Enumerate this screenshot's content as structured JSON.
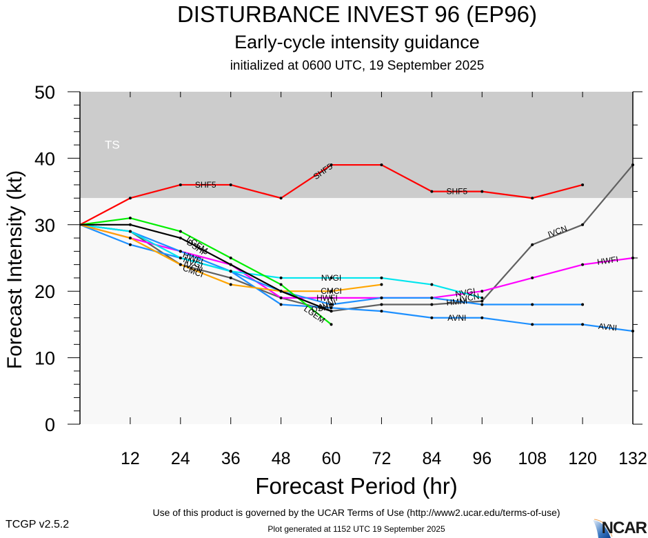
{
  "header": {
    "title": "DISTURBANCE INVEST 96 (EP96)",
    "subtitle": "Early-cycle intensity guidance",
    "initialized": "initialized at 0600 UTC, 19 September 2025"
  },
  "footer": {
    "terms": "Use of this product is governed by the UCAR Terms of Use (http://www2.ucar.edu/terms-of-use)",
    "version": "TCGP v2.5.2",
    "generated": "Plot generated at 1152 UTC   19 September 2025",
    "logo": "NCAR"
  },
  "chart_data": {
    "type": "line",
    "title": "DISTURBANCE INVEST 96 (EP96)",
    "xlabel": "Forecast Period (hr)",
    "ylabel": "Forecast Intensity (kt)",
    "xlim": [
      0,
      132
    ],
    "ylim": [
      0,
      50
    ],
    "xticks": [
      12,
      24,
      36,
      48,
      60,
      72,
      84,
      96,
      108,
      120,
      132
    ],
    "yticks": [
      0,
      10,
      20,
      30,
      40,
      50
    ],
    "grid": false,
    "bands": [
      {
        "label": "TS",
        "from": 34,
        "to": 50,
        "color": "#cccccc"
      },
      {
        "label": "",
        "from": 0,
        "to": 34,
        "color": "#f8f8f8"
      }
    ],
    "series": [
      {
        "name": "SHF5",
        "color": "#ff0000",
        "x": [
          0,
          12,
          24,
          36,
          48,
          60,
          72,
          84,
          96,
          108,
          120
        ],
        "values": [
          30,
          34,
          36,
          36,
          34,
          39,
          39,
          35,
          35,
          34,
          36
        ]
      },
      {
        "name": "IVCN",
        "color": "#606060",
        "x": [
          0,
          12,
          24,
          36,
          48,
          60,
          72,
          84,
          96,
          108,
          120,
          132
        ],
        "values": [
          30,
          29,
          24,
          22,
          19,
          17,
          18,
          18,
          18.5,
          27,
          30,
          39
        ]
      },
      {
        "name": "HWFI",
        "color": "#ff00ff",
        "x": [
          0,
          12,
          24,
          36,
          48,
          60,
          72,
          84,
          96,
          108,
          120,
          132
        ],
        "values": [
          30,
          28,
          26,
          24,
          19,
          19,
          19,
          19,
          20,
          22,
          24,
          25
        ]
      },
      {
        "name": "HMNI",
        "color": "#1e90ff",
        "x": [
          0,
          12,
          24,
          36,
          48,
          60,
          72,
          84,
          96,
          108,
          120
        ],
        "values": [
          30,
          29,
          26,
          23,
          20,
          18,
          19,
          19,
          18,
          18,
          18
        ]
      },
      {
        "name": "AVNI",
        "color": "#1e90ff",
        "x": [
          0,
          12,
          24,
          36,
          48,
          60,
          72,
          84,
          96,
          108,
          120,
          132
        ],
        "values": [
          30,
          27,
          25,
          23,
          18,
          17.5,
          17,
          16,
          16,
          15,
          15,
          14
        ]
      },
      {
        "name": "NVGI",
        "color": "#00e5ee",
        "x": [
          0,
          12,
          24,
          36,
          48,
          60,
          72,
          84,
          96
        ],
        "values": [
          30,
          29,
          25,
          23,
          22,
          22,
          22,
          21,
          19
        ]
      },
      {
        "name": "CMCI",
        "color": "#ffa500",
        "x": [
          0,
          12,
          24,
          36,
          48,
          60,
          72
        ],
        "values": [
          30,
          28,
          24,
          21,
          20,
          20,
          21
        ]
      },
      {
        "name": "LGEM",
        "color": "#00ee00",
        "x": [
          0,
          12,
          24,
          36,
          48,
          60
        ],
        "values": [
          30,
          31,
          29,
          25,
          21,
          15
        ]
      },
      {
        "name": "DSHP",
        "color": "#000000",
        "x": [
          0,
          12,
          24,
          36,
          48,
          60
        ],
        "values": [
          30,
          30,
          28,
          24,
          20,
          17
        ]
      }
    ],
    "labels": [
      {
        "text": "SHF5",
        "series": "SHF5",
        "x": 30,
        "y": 36,
        "angle": 0
      },
      {
        "text": "SHF5",
        "series": "SHF5",
        "x": 58,
        "y": 38,
        "angle": -35
      },
      {
        "text": "SHF5",
        "series": "SHF5",
        "x": 90,
        "y": 35,
        "angle": 0
      },
      {
        "text": "IVCN",
        "series": "IVCN",
        "x": 114,
        "y": 29,
        "angle": -20
      },
      {
        "text": "HWFI",
        "series": "HWFI",
        "x": 126,
        "y": 24.6,
        "angle": -8
      },
      {
        "text": "AVNI",
        "series": "AVNI",
        "x": 90,
        "y": 16,
        "angle": 0
      },
      {
        "text": "AVNI",
        "series": "AVNI",
        "x": 126,
        "y": 14.6,
        "angle": 6
      },
      {
        "text": "NVGI",
        "series": "NVGI",
        "x": 60,
        "y": 22,
        "angle": 0
      },
      {
        "text": "CMCI",
        "series": "CMCI",
        "x": 60,
        "y": 20,
        "angle": 0
      },
      {
        "text": "HWFI",
        "series": "HWFI",
        "x": 59,
        "y": 19,
        "angle": 0
      },
      {
        "text": "AVNI",
        "series": "AVNI",
        "x": 59,
        "y": 18,
        "angle": -20
      },
      {
        "text": "LGEM",
        "series": "LGEM",
        "x": 28,
        "y": 27,
        "angle": 35
      },
      {
        "text": "DSHP",
        "series": "DSHP",
        "x": 28,
        "y": 26.5,
        "angle": 35
      },
      {
        "text": "HWFI",
        "series": "HWFI",
        "x": 27,
        "y": 25,
        "angle": 20
      },
      {
        "text": "NVGI",
        "series": "NVGI",
        "x": 27,
        "y": 24.3,
        "angle": 20
      },
      {
        "text": "IVCN",
        "series": "IVCN",
        "x": 27,
        "y": 23.6,
        "angle": 20
      },
      {
        "text": "CMCI",
        "series": "CMCI",
        "x": 27,
        "y": 23,
        "angle": 20
      },
      {
        "text": "DSHP",
        "series": "DSHP",
        "x": 58,
        "y": 17.5,
        "angle": -10
      },
      {
        "text": "LGEM",
        "series": "LGEM",
        "x": 56,
        "y": 16.5,
        "angle": 35
      },
      {
        "text": "NVGI",
        "series": "NVGI",
        "x": 92,
        "y": 19.8,
        "angle": -10
      },
      {
        "text": "HMNI",
        "series": "HMNI",
        "x": 90,
        "y": 18.4,
        "angle": -5
      },
      {
        "text": "IVCN",
        "series": "IVCN",
        "x": 93,
        "y": 19,
        "angle": -10
      }
    ],
    "band_label": "TS"
  }
}
